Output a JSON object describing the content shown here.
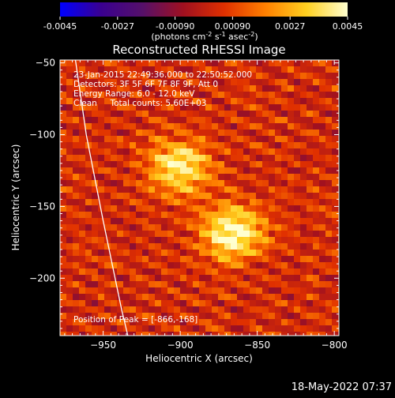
{
  "colorbar": {
    "ticks": [
      "-0.0045",
      "-0.0027",
      "-0.00090",
      "0.00090",
      "0.0027",
      "0.0045"
    ],
    "tick_values": [
      -0.0045,
      -0.0027,
      -0.0009,
      0.0009,
      0.0027,
      0.0045
    ],
    "range": [
      -0.0045,
      0.0045
    ],
    "units": {
      "base": "(photons cm",
      "exp1": "-2",
      "mid1": " s",
      "exp2": "-1",
      "mid2": " asec",
      "exp3": "-2",
      "end": ")"
    }
  },
  "annotations": {
    "time": "23-Jan-2015 22:49:36.000 to 22:50:52.000",
    "detectors": "Detectors: 3F 5F 6F 7F 8F 9F, Att 0",
    "energy": "Energy Range: 6.0 - 12.0 keV",
    "clean": "Clean     Total counts: 5.60E+03",
    "peak": "Position of Peak = [-866,-168]"
  },
  "footer": {
    "timestamp": "18-May-2022 07:37"
  },
  "chart_data": {
    "type": "heatmap",
    "title": "Reconstructed RHESSI Image",
    "xlabel": "Heliocentric X (arcsec)",
    "ylabel": "Heliocentric Y (arcsec)",
    "xlim": [
      -978,
      -797
    ],
    "ylim": [
      -240,
      -48
    ],
    "xticks": [
      -950,
      -900,
      -850,
      -800
    ],
    "xtick_labels": [
      "−950",
      "−900",
      "−850",
      "−800"
    ],
    "yticks": [
      -50,
      -100,
      -150,
      -200
    ],
    "ytick_labels": [
      "−50",
      "−100",
      "−150",
      "−200"
    ],
    "sources": [
      {
        "x": -866,
        "y": -168,
        "value": 0.0045
      },
      {
        "x": -900,
        "y": -123,
        "value": 0.0038
      }
    ],
    "limb_curve": [
      [
        -968,
        -48
      ],
      [
        -961,
        -100
      ],
      [
        -950,
        -160
      ],
      [
        -938,
        -222
      ],
      [
        -934,
        -240
      ]
    ],
    "colormap": [
      "#0000ff",
      "#3a0090",
      "#55106a",
      "#a01020",
      "#e03000",
      "#ff8000",
      "#ffd020",
      "#ffffd0"
    ]
  }
}
